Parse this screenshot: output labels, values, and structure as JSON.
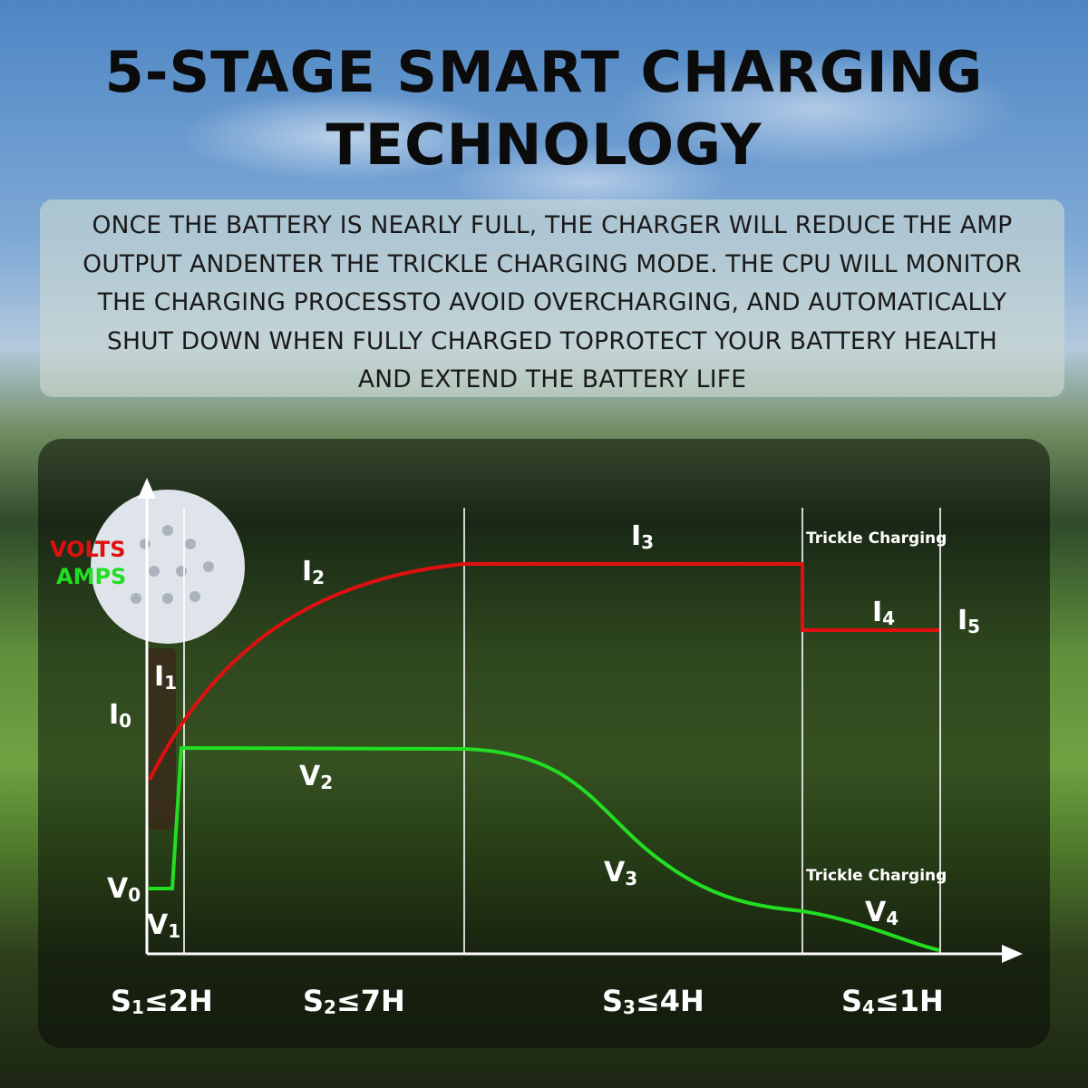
{
  "title_line1": "5-STAGE SMART CHARGING",
  "title_line2": "TECHNOLOGY",
  "description": [
    "ONCE THE BATTERY IS NEARLY FULL, THE CHARGER WILL REDUCE THE AMP",
    "OUTPUT ANDENTER THE TRICKLE CHARGING MODE. THE CPU WILL MONITOR",
    "THE CHARGING PROCESSTO AVOID OVERCHARGING, AND AUTOMATICALLY",
    "SHUT DOWN WHEN FULLY CHARGED TOPROTECT YOUR BATTERY HEALTH",
    "AND EXTEND THE BATTERY LIFE"
  ],
  "colors": {
    "volts": "#e01010",
    "amps": "#22dd22",
    "axis": "#ffffff"
  },
  "diagram": {
    "legend_volts": "VOLTS",
    "legend_amps": "AMPS",
    "trickle_label_top": "Trickle Charging",
    "trickle_label_bottom": "Trickle Charging",
    "current_labels": [
      {
        "base": "I",
        "sub": "0"
      },
      {
        "base": "I",
        "sub": "1"
      },
      {
        "base": "I",
        "sub": "2"
      },
      {
        "base": "I",
        "sub": "3"
      },
      {
        "base": "I",
        "sub": "4"
      },
      {
        "base": "I",
        "sub": "5"
      }
    ],
    "voltage_labels": [
      {
        "base": "V",
        "sub": "0"
      },
      {
        "base": "V",
        "sub": "1"
      },
      {
        "base": "V",
        "sub": "2"
      },
      {
        "base": "V",
        "sub": "3"
      },
      {
        "base": "V",
        "sub": "4"
      }
    ],
    "stage_labels": [
      {
        "base": "S",
        "sub": "1",
        "rest": "≤2H"
      },
      {
        "base": "S",
        "sub": "2",
        "rest": "≤7H"
      },
      {
        "base": "S",
        "sub": "3",
        "rest": "≤4H"
      },
      {
        "base": "S",
        "sub": "4",
        "rest": "≤1H"
      }
    ]
  }
}
